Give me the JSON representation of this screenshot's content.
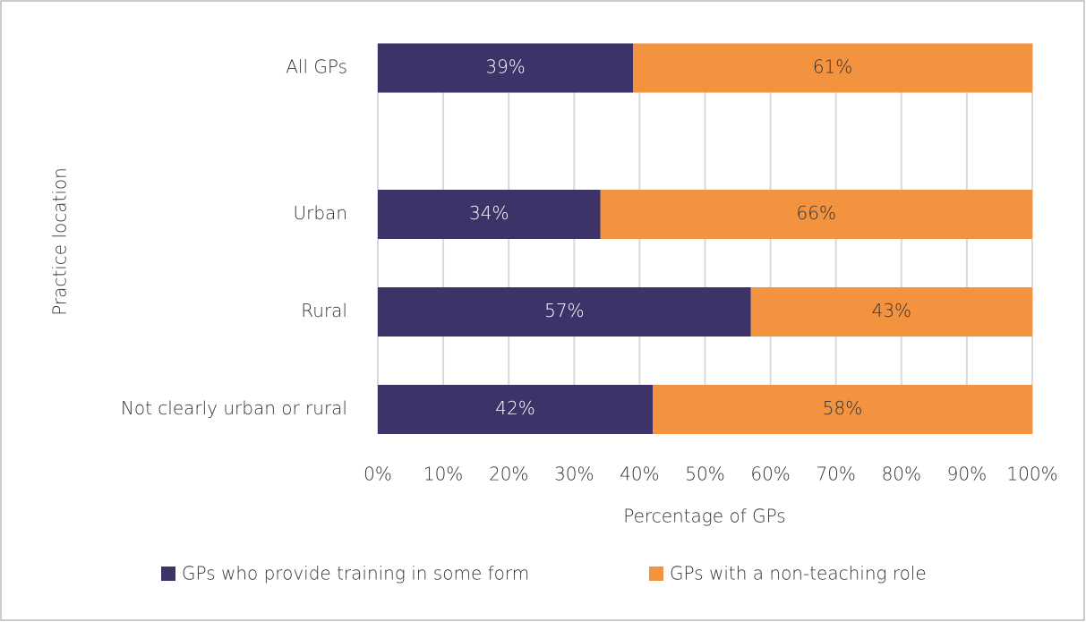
{
  "chart_data": {
    "type": "bar",
    "orientation": "horizontal",
    "stacked": true,
    "categories": [
      "All GPs",
      null,
      "Urban",
      "Rural",
      "Not clearly urban or rural"
    ],
    "series": [
      {
        "name": "GPs who provide training in some form",
        "color": "#3d3369",
        "label_color": "#ffffff",
        "values": [
          39,
          null,
          34,
          57,
          42
        ],
        "value_labels": [
          "39%",
          null,
          "34%",
          "57%",
          "42%"
        ]
      },
      {
        "name": "GPs with a non-teaching role",
        "color": "#f3923f",
        "label_color": "#333333",
        "values": [
          61,
          null,
          66,
          43,
          58
        ],
        "value_labels": [
          "61%",
          null,
          "66%",
          "43%",
          "58%"
        ]
      }
    ],
    "xlabel": "Percentage of GPs",
    "ylabel": "Practice location",
    "xlim": [
      0,
      100
    ],
    "xticks": [
      {
        "value": 0,
        "label": "0%"
      },
      {
        "value": 10,
        "label": "10%"
      },
      {
        "value": 20,
        "label": "20%"
      },
      {
        "value": 30,
        "label": "30%"
      },
      {
        "value": 40,
        "label": "40%"
      },
      {
        "value": 50,
        "label": "50%"
      },
      {
        "value": 60,
        "label": "60%"
      },
      {
        "value": 70,
        "label": "70%"
      },
      {
        "value": 80,
        "label": "80%"
      },
      {
        "value": 90,
        "label": "90%"
      },
      {
        "value": 100,
        "label": "100%"
      }
    ],
    "grid": true,
    "legend": "bottom"
  }
}
